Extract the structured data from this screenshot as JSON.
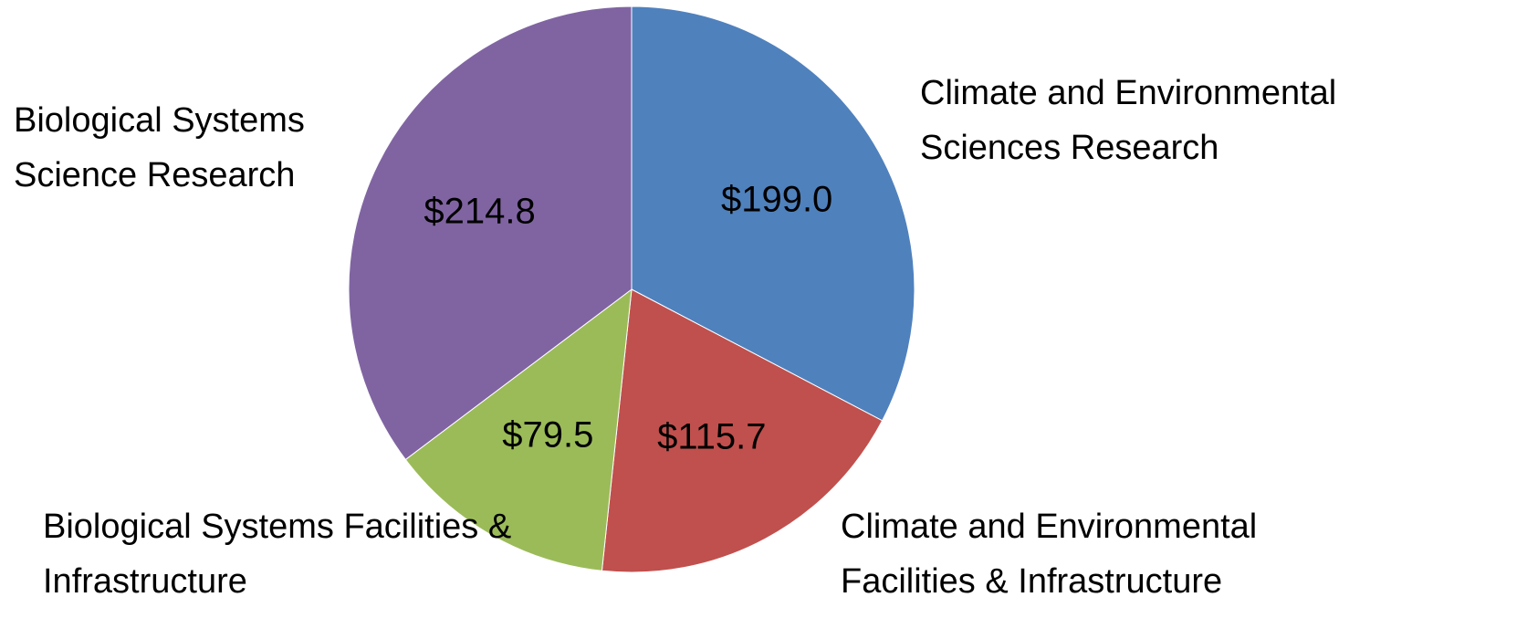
{
  "chart_data": {
    "type": "pie",
    "categories": [
      "Climate and Environmental Sciences Research",
      "Climate and Environmental Facilities & Infrastructure",
      "Biological Systems Facilities & Infrastructure",
      "Biological Systems Science Research"
    ],
    "values": [
      199.0,
      115.7,
      79.5,
      214.8
    ],
    "value_labels": [
      "$199.0",
      "$115.7",
      "$79.5",
      "$214.8"
    ],
    "colors": [
      "#4f81bd",
      "#c0504d",
      "#9bbb59",
      "#8064a2"
    ]
  }
}
